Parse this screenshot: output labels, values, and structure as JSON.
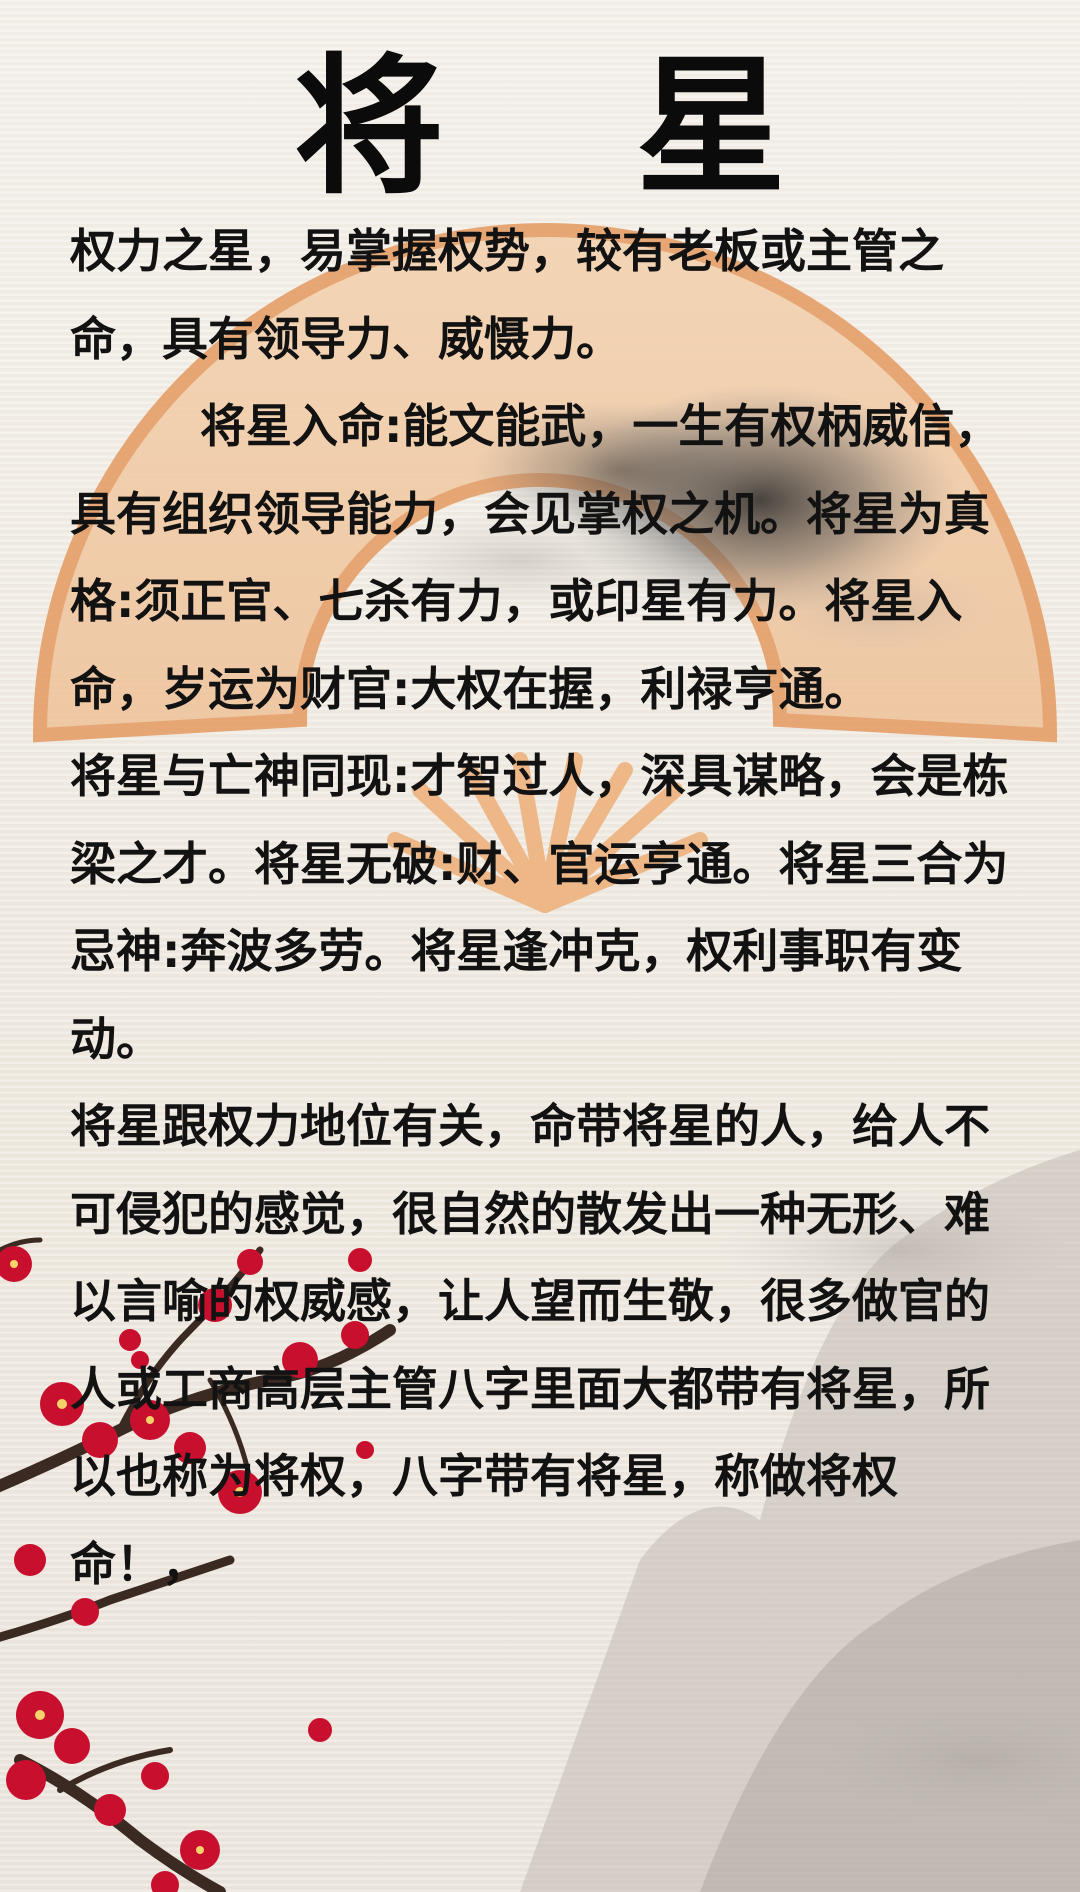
{
  "title": "将 星",
  "paragraphs": [
    "权力之星，易掌握权势，较有老板或主管之命，具有领导力、威慑力。",
    "将星入命:能文能武，一生有权柄威信，具有组织领导能力，会见掌权之机。将星为真格:须正官、七杀有力，或印星有力。将星入命，岁运为财官:大权在握，利禄亨通。",
    "将星与亡神同现:才智过人，深具谋略，会是栋梁之才。将星无破:财、官运亨通。将星三合为忌神:奔波多劳。将星逢冲克，权利事职有变动。",
    "将星跟权力地位有关，命带将星的人，给人不可侵犯的感觉，很自然的散发出一种无形、难以言喻的权威感，让人望而生敬，很多做官的人或工商高层主管八字里面大都带有将星，所以也称为将权，八字带有将星，称做将权命！，"
  ],
  "colors": {
    "text": "#121212",
    "fan": "#f0c9a0",
    "fan_rim": "#e8a978",
    "plum_blossom": "#c8102e",
    "branch": "#3a2a22",
    "mountain": "#b8b3ad"
  }
}
